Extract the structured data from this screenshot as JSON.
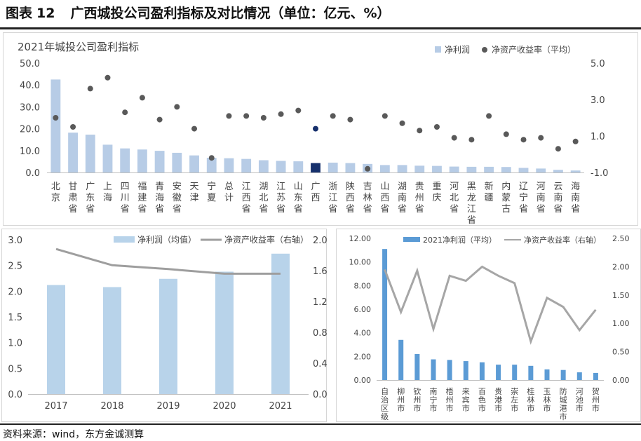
{
  "header": {
    "title_prefix": "图表",
    "title_number": "12",
    "title_text": "广西城投公司盈利指标及对比情况（单位：亿元、%）"
  },
  "footer": {
    "source": "资料来源：wind，东方金诚测算"
  },
  "chart_data": [
    {
      "type": "bar+scatter",
      "title": "2021年城投公司盈利指标",
      "legend_position": "top-right",
      "categories": [
        "北京",
        "甘肃省",
        "广东省",
        "上海",
        "四川省",
        "福建省",
        "青海省",
        "安徽省",
        "天津",
        "宁夏",
        "总计",
        "江西省",
        "湖北省",
        "江苏省",
        "山东省",
        "广西",
        "浙江省",
        "陕西省",
        "吉林省",
        "山西省",
        "湖南省",
        "贵州省",
        "重庆",
        "河北省",
        "黑龙江省",
        "新疆",
        "内蒙古",
        "辽宁省",
        "河南省",
        "云南省",
        "海南省"
      ],
      "highlight_category": "广西",
      "series": [
        {
          "name": "净利润",
          "kind": "bar",
          "axis": "left",
          "values": [
            42.5,
            18.2,
            17.3,
            12.7,
            11.0,
            10.5,
            9.9,
            9.0,
            7.8,
            6.7,
            6.5,
            6.2,
            5.6,
            5.3,
            5.1,
            4.3,
            4.5,
            4.3,
            3.9,
            3.4,
            3.4,
            3.1,
            3.0,
            2.7,
            2.6,
            2.6,
            2.5,
            2.1,
            1.8,
            1.2,
            0.9
          ]
        },
        {
          "name": "净资产收益率（平均）",
          "kind": "scatter",
          "axis": "right",
          "values": [
            2.0,
            1.5,
            3.6,
            4.2,
            2.3,
            3.1,
            1.9,
            2.6,
            1.4,
            -0.2,
            2.1,
            2.1,
            2.0,
            2.2,
            2.4,
            1.4,
            2.1,
            1.9,
            -0.8,
            2.1,
            1.7,
            1.3,
            1.5,
            0.9,
            0.8,
            2.1,
            1.1,
            0.8,
            0.9,
            0.3,
            0.7
          ]
        }
      ],
      "yleft": {
        "ticks": [
          "0.0",
          "10.0",
          "20.0",
          "30.0",
          "40.0",
          "50.0"
        ],
        "min": 0,
        "max": 50
      },
      "yright": {
        "ticks": [
          "-1.0",
          "1.0",
          "3.0",
          "5.0"
        ],
        "min": -1,
        "max": 5
      },
      "colors": {
        "bar": "#b7cce6",
        "bar_highlight": "#16306c",
        "dot": "#595959",
        "dot_highlight": "#16306c"
      }
    },
    {
      "type": "bar+line",
      "legend_position": "top",
      "categories": [
        "2017",
        "2018",
        "2019",
        "2020",
        "2021"
      ],
      "series": [
        {
          "name": "净利润（均值）",
          "kind": "bar",
          "axis": "left",
          "values": [
            2.12,
            2.08,
            2.24,
            2.38,
            2.73
          ]
        },
        {
          "name": "净资产收益率（右轴）",
          "kind": "line",
          "axis": "right",
          "values": [
            1.88,
            1.67,
            1.62,
            1.56,
            1.56
          ]
        }
      ],
      "yleft": {
        "ticks": [
          "0.0",
          "0.5",
          "1.0",
          "1.5",
          "2.0",
          "2.5",
          "3.0"
        ],
        "min": 0,
        "max": 3
      },
      "yright": {
        "ticks": [
          "0.0",
          "0.4",
          "0.8",
          "1.2",
          "1.6",
          "2.0"
        ],
        "min": 0,
        "max": 2
      },
      "colors": {
        "bar": "#b8d3ea",
        "line": "#9e9e9e"
      }
    },
    {
      "type": "bar+line",
      "legend_position": "top",
      "categories": [
        "自治区级",
        "柳州市",
        "钦州市",
        "南宁市",
        "梧州市",
        "来宾市",
        "百色市",
        "贵港市",
        "崇左市",
        "桂林市",
        "玉林市",
        "防城港市",
        "河池市",
        "贺州市"
      ],
      "series": [
        {
          "name": "2021净利润（平均）",
          "kind": "bar",
          "axis": "left",
          "values": [
            11.1,
            3.4,
            2.2,
            1.75,
            1.7,
            1.6,
            1.5,
            1.3,
            1.3,
            1.2,
            0.9,
            0.85,
            0.65,
            0.6
          ]
        },
        {
          "name": "净资产收益率（右轴）",
          "kind": "line",
          "axis": "right",
          "values": [
            1.95,
            1.2,
            1.93,
            0.9,
            1.84,
            1.75,
            2.0,
            1.84,
            1.71,
            0.68,
            1.45,
            1.29,
            0.88,
            1.24
          ]
        }
      ],
      "yleft": {
        "ticks": [
          "0.00",
          "2.00",
          "4.00",
          "6.00",
          "8.00",
          "10.00",
          "12.00"
        ],
        "min": 0,
        "max": 12
      },
      "yright": {
        "ticks": [
          "0.00",
          "0.50",
          "1.00",
          "1.50",
          "2.00",
          "2.50"
        ],
        "min": 0,
        "max": 2.5
      },
      "colors": {
        "bar": "#5b9bd5",
        "line": "#a6a6a6"
      }
    }
  ]
}
